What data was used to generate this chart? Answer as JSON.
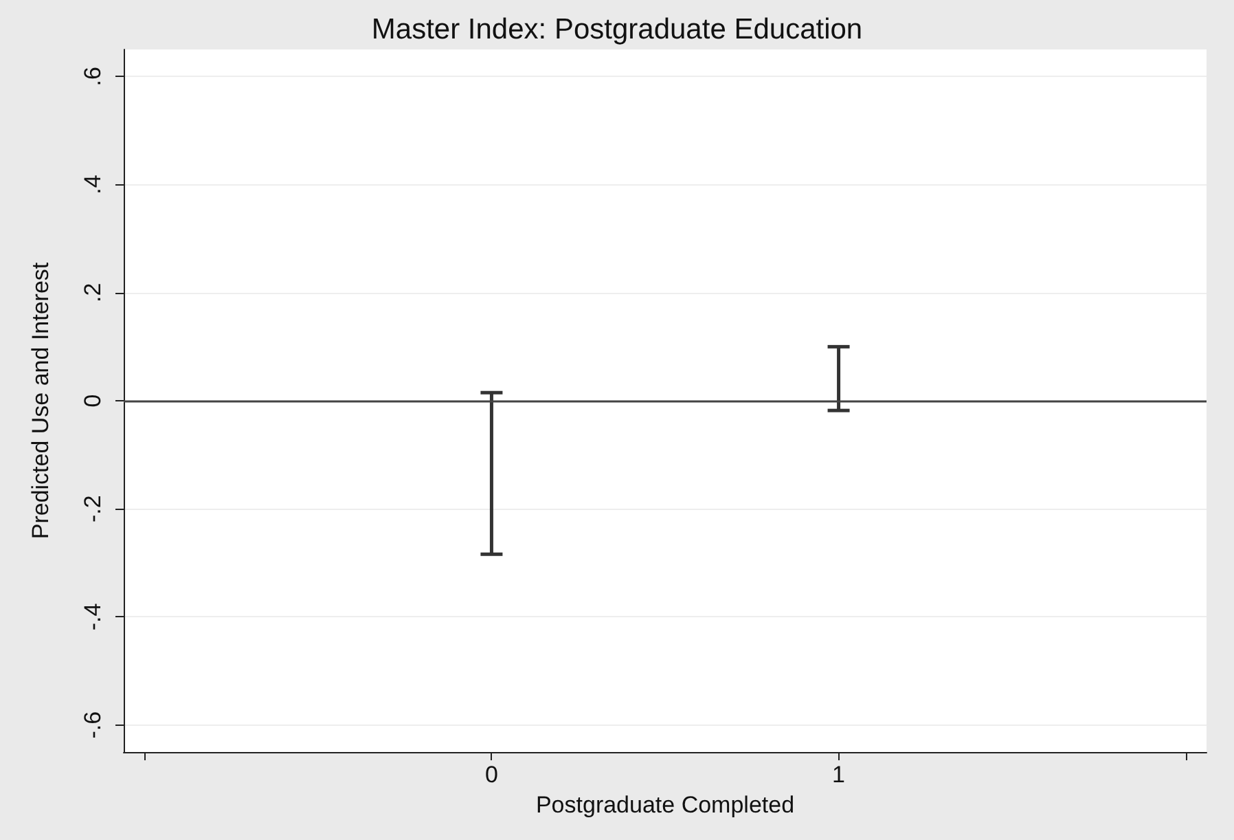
{
  "chart_data": {
    "type": "bar",
    "title": "Master Index: Postgraduate Education",
    "xlabel": "Postgraduate Completed",
    "ylabel": "Predicted Use and Interest",
    "x": [
      0,
      1
    ],
    "base": [
      -0.284,
      -0.018
    ],
    "values": [
      0.299,
      0.118
    ],
    "color": "#333333",
    "xlim": [
      -1.06,
      2.06
    ],
    "xticks": [
      {
        "value": -1,
        "label": null
      },
      0,
      1,
      {
        "value": 2,
        "label": null
      }
    ],
    "ylim": [
      -0.65,
      0.65
    ],
    "yticks": [
      {
        "value": -0.6,
        "label": "-.6"
      },
      {
        "value": -0.4,
        "label": "-.4"
      },
      {
        "value": -0.2,
        "label": "-.2"
      },
      0,
      {
        "value": 0.2,
        "label": ".2"
      },
      {
        "value": 0.4,
        "label": ".4"
      },
      {
        "value": 0.6,
        "label": ".6"
      }
    ],
    "grid": "y",
    "ref_lines": [
      {
        "axis": "y",
        "value": 0,
        "color": "#444444"
      }
    ]
  }
}
